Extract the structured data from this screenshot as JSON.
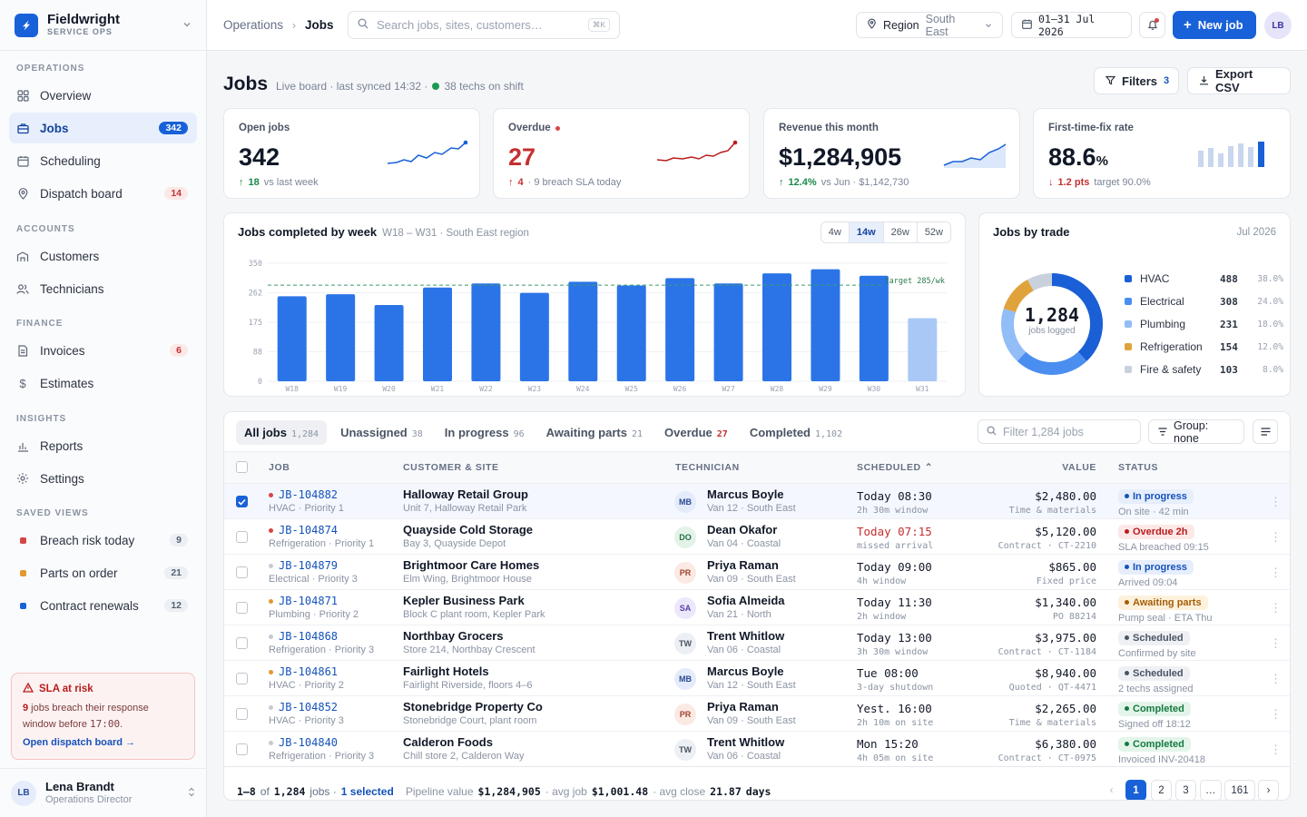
{
  "brand": {
    "name": "Fieldwright",
    "sub": "SERVICE OPS"
  },
  "nav": {
    "sections": [
      "OPERATIONS",
      "ACCOUNTS",
      "FINANCE",
      "INSIGHTS",
      "SAVED VIEWS"
    ],
    "items": [
      {
        "label": "Overview",
        "badge": ""
      },
      {
        "label": "Jobs",
        "badge": "342"
      },
      {
        "label": "Scheduling",
        "badge": ""
      },
      {
        "label": "Dispatch board",
        "badge": "14"
      },
      {
        "label": "Customers",
        "badge": ""
      },
      {
        "label": "Technicians",
        "badge": ""
      },
      {
        "label": "Invoices",
        "badge": "6"
      },
      {
        "label": "Estimates",
        "badge": ""
      },
      {
        "label": "Reports",
        "badge": ""
      },
      {
        "label": "Settings",
        "badge": ""
      }
    ],
    "saved_views": [
      {
        "label": "Breach risk today",
        "count": "9",
        "color": "#d64545"
      },
      {
        "label": "Parts on order",
        "count": "21",
        "color": "#e0982f"
      },
      {
        "label": "Contract renewals",
        "count": "12",
        "color": "#1861d8"
      }
    ]
  },
  "sla": {
    "title": "SLA at risk",
    "count": "9",
    "line1": " jobs breach their response",
    "line2": "window before ",
    "time": "17:00",
    "end": ".",
    "link": "Open dispatch board →"
  },
  "user": {
    "initials": "LB",
    "name": "Lena Brandt",
    "role": "Operations Director"
  },
  "topbar": {
    "crumb_root": "Operations",
    "crumb_current": "Jobs",
    "search_placeholder": "Search jobs, sites, customers…",
    "search_kbd": "⌘K",
    "region_label": "Region",
    "region_value": "South East",
    "date_range": "01–31 Jul 2026",
    "new_job": "New job",
    "avatar": "LB"
  },
  "page": {
    "title": "Jobs",
    "meta": "Live board · last synced 14:32 ·",
    "techs": "38 techs on shift",
    "filters_label": "Filters",
    "filters_count": "3",
    "export_label": "Export CSV"
  },
  "kpis": [
    {
      "label": "Open jobs",
      "value": "342",
      "delta": "18",
      "foot": "vs last week",
      "trend": "up"
    },
    {
      "label": "Overdue",
      "value": "27",
      "delta": "4",
      "foot": "· 9 breach SLA today",
      "trend": "up-bad"
    },
    {
      "label": "Revenue this month",
      "value": "$1,284,905",
      "delta": "12.4%",
      "foot": "vs Jun · $1,142,730",
      "trend": "up"
    },
    {
      "label": "First-time-fix rate",
      "value": "88.6",
      "unit": "%",
      "delta": "1.2 pts",
      "foot": "target 90.0%",
      "trend": "down"
    }
  ],
  "chart_data": [
    {
      "type": "bar",
      "title": "Jobs completed by week",
      "subtitle": "W18 – W31 · South East region",
      "ranges": [
        "4w",
        "14w",
        "26w",
        "52w"
      ],
      "selected_range": "14w",
      "categories": [
        "W18",
        "W19",
        "W20",
        "W21",
        "W22",
        "W23",
        "W24",
        "W25",
        "W26",
        "W27",
        "W28",
        "W29",
        "W30",
        "W31"
      ],
      "values": [
        252,
        258,
        226,
        278,
        290,
        262,
        295,
        284,
        306,
        290,
        320,
        332,
        313,
        187
      ],
      "partial_last": true,
      "y_ticks": [
        "350",
        "262",
        "175",
        "88",
        "0"
      ],
      "ylim": [
        0,
        350
      ],
      "target": 285,
      "target_label": "target 285/wk",
      "grid": true,
      "bar_color": "#2b74e8",
      "partial_color": "#a9c8f6"
    },
    {
      "type": "pie",
      "title": "Jobs by trade",
      "period": "Jul 2026",
      "total": "1,284",
      "total_label": "jobs logged",
      "series": [
        {
          "name": "HVAC",
          "value": 488,
          "pct": "38.0%",
          "color": "#1a5fd6"
        },
        {
          "name": "Electrical",
          "value": 308,
          "pct": "24.0%",
          "color": "#4a8ef0"
        },
        {
          "name": "Plumbing",
          "value": 231,
          "pct": "18.0%",
          "color": "#93bdf6"
        },
        {
          "name": "Refrigeration",
          "value": 154,
          "pct": "12.0%",
          "color": "#e0a33c"
        },
        {
          "name": "Fire & safety",
          "value": 103,
          "pct": "8.0%",
          "color": "#c9d1dd"
        }
      ]
    }
  ],
  "table": {
    "tabs": [
      {
        "label": "All jobs",
        "count": "1,284"
      },
      {
        "label": "Unassigned",
        "count": "38"
      },
      {
        "label": "In progress",
        "count": "96"
      },
      {
        "label": "Awaiting parts",
        "count": "21"
      },
      {
        "label": "Overdue",
        "count": "27"
      },
      {
        "label": "Completed",
        "count": "1,102"
      }
    ],
    "filter_placeholder": "Filter 1,284 jobs",
    "group_label": "Group: none",
    "columns": [
      "JOB",
      "CUSTOMER & SITE",
      "TECHNICIAN",
      "SCHEDULED",
      "VALUE",
      "STATUS"
    ],
    "rows": [
      {
        "id": "JB-104882",
        "pri": "HVAC · Priority 1",
        "pcolor": "#d64545",
        "cust": "Halloway Retail Group",
        "site": "Unit 7, Halloway Retail Park",
        "ini": "MB",
        "tech": "Marcus Boyle",
        "van": "Van 12 · South East",
        "when": "Today 08:30",
        "win": "2h 30m window",
        "late": false,
        "val": "$2,480.00",
        "vsub": "Time & materials",
        "status": "In progress",
        "scls": "p-prog",
        "snote": "On site · 42 min",
        "avbg": "#e4ebfa",
        "avfg": "#284a93",
        "selected": true
      },
      {
        "id": "JB-104874",
        "pri": "Refrigeration · Priority 1",
        "pcolor": "#d64545",
        "cust": "Quayside Cold Storage",
        "site": "Bay 3, Quayside Depot",
        "ini": "DO",
        "tech": "Dean Okafor",
        "van": "Van 04 · Coastal",
        "when": "Today 07:15",
        "win": "missed arrival",
        "late": true,
        "val": "$5,120.00",
        "vsub": "Contract · CT-2210",
        "status": "Overdue 2h",
        "scls": "p-over",
        "snote": "SLA breached 09:15",
        "avbg": "#e3f3e8",
        "avfg": "#237146",
        "selected": false
      },
      {
        "id": "JB-104879",
        "pri": "Electrical · Priority 3",
        "pcolor": "#c5cad3",
        "cust": "Brightmoor Care Homes",
        "site": "Elm Wing, Brightmoor House",
        "ini": "PR",
        "tech": "Priya Raman",
        "van": "Van 09 · South East",
        "when": "Today 09:00",
        "win": "4h window",
        "late": false,
        "val": "$865.00",
        "vsub": "Fixed price",
        "status": "In progress",
        "scls": "p-prog",
        "snote": "Arrived 09:04",
        "avbg": "#fbe9e4",
        "avfg": "#a0452e",
        "selected": false
      },
      {
        "id": "JB-104871",
        "pri": "Plumbing · Priority 2",
        "pcolor": "#e0982f",
        "cust": "Kepler Business Park",
        "site": "Block C plant room, Kepler Park",
        "ini": "SA",
        "tech": "Sofia Almeida",
        "van": "Van 21 · North",
        "when": "Today 11:30",
        "win": "2h window",
        "late": false,
        "val": "$1,340.00",
        "vsub": "PO 88214",
        "status": "Awaiting parts",
        "scls": "p-parts",
        "snote": "Pump seal · ETA Thu",
        "avbg": "#ece8fb",
        "avfg": "#5a3fa8",
        "selected": false
      },
      {
        "id": "JB-104868",
        "pri": "Refrigeration · Priority 3",
        "pcolor": "#c5cad3",
        "cust": "Northbay Grocers",
        "site": "Store 214, Northbay Crescent",
        "ini": "TW",
        "tech": "Trent Whitlow",
        "van": "Van 06 · Coastal",
        "when": "Today 13:00",
        "win": "3h 30m window",
        "late": false,
        "val": "$3,975.00",
        "vsub": "Contract · CT-1184",
        "status": "Scheduled",
        "scls": "p-sched",
        "snote": "Confirmed by site",
        "avbg": "#eceff3",
        "avfg": "#4b5465",
        "selected": false
      },
      {
        "id": "JB-104861",
        "pri": "HVAC · Priority 2",
        "pcolor": "#e0982f",
        "cust": "Fairlight Hotels",
        "site": "Fairlight Riverside, floors 4–6",
        "ini": "MB",
        "tech": "Marcus Boyle",
        "van": "Van 12 · South East",
        "when": "Tue 08:00",
        "win": "3-day shutdown",
        "late": false,
        "val": "$8,940.00",
        "vsub": "Quoted · QT-4471",
        "status": "Scheduled",
        "scls": "p-sched",
        "snote": "2 techs assigned",
        "avbg": "#e4ebfa",
        "avfg": "#284a93",
        "selected": false
      },
      {
        "id": "JB-104852",
        "pri": "HVAC · Priority 3",
        "pcolor": "#c5cad3",
        "cust": "Stonebridge Property Co",
        "site": "Stonebridge Court, plant room",
        "ini": "PR",
        "tech": "Priya Raman",
        "van": "Van 09 · South East",
        "when": "Yest. 16:00",
        "win": "2h 10m on site",
        "late": false,
        "val": "$2,265.00",
        "vsub": "Time & materials",
        "status": "Completed",
        "scls": "p-done",
        "snote": "Signed off 18:12",
        "avbg": "#fbe9e4",
        "avfg": "#a0452e",
        "selected": false
      },
      {
        "id": "JB-104840",
        "pri": "Refrigeration · Priority 3",
        "pcolor": "#c5cad3",
        "cust": "Calderon Foods",
        "site": "Chill store 2, Calderon Way",
        "ini": "TW",
        "tech": "Trent Whitlow",
        "van": "Van 06 · Coastal",
        "when": "Mon 15:20",
        "win": "4h 05m on site",
        "late": false,
        "val": "$6,380.00",
        "vsub": "Contract · CT-0975",
        "status": "Completed",
        "scls": "p-done",
        "snote": "Invoiced INV-20418",
        "avbg": "#eceff3",
        "avfg": "#4b5465",
        "selected": false
      }
    ],
    "footer": {
      "range": "1–8",
      "of": "of",
      "total": "1,284",
      "unit": "jobs ·",
      "selected": "1 selected",
      "pipe_label": "Pipeline value",
      "pipe_value": "$1,284,905",
      "avg_label": "· avg job",
      "avg_value": "$1,001.48",
      "close_label": "· avg close",
      "close_value": "21.87",
      "close_unit": "days"
    },
    "pages": [
      "1",
      "2",
      "3",
      "…",
      "161"
    ]
  }
}
